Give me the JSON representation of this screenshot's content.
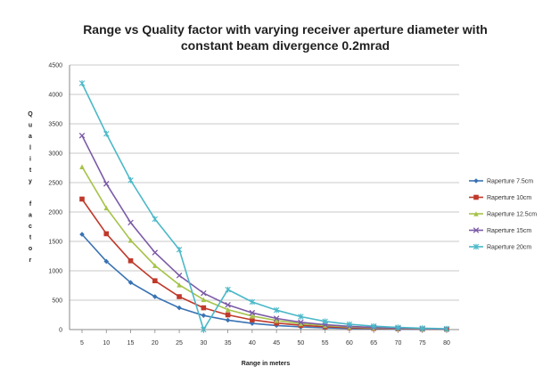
{
  "chart_data": {
    "type": "line",
    "title_lines": [
      "Range vs Quality factor with varying receiver aperture diameter with",
      "constant beam divergence 0.2mrad"
    ],
    "xlabel": "Range in meters",
    "ylabel_letters": [
      "Q",
      "u",
      "a",
      "l",
      "i",
      "t",
      "y",
      "",
      "f",
      "a",
      "c",
      "t",
      "o",
      "r"
    ],
    "ylim": [
      0,
      4500
    ],
    "yticks": [
      0,
      500,
      1000,
      1500,
      2000,
      2500,
      3000,
      3500,
      4000,
      4500
    ],
    "categories": [
      "5",
      "10",
      "15",
      "20",
      "25",
      "30",
      "35",
      "40",
      "45",
      "50",
      "55",
      "60",
      "65",
      "70",
      "75",
      "80"
    ],
    "grid": "horizontal",
    "legend_position": "right",
    "series": [
      {
        "name": "Raperture 7.5cm",
        "color": "#3a73b4",
        "marker": "diamond",
        "values": [
          1620,
          1160,
          800,
          560,
          370,
          240,
          160,
          105,
          70,
          45,
          30,
          20,
          12,
          8,
          5,
          3
        ]
      },
      {
        "name": "Raperture 10cm",
        "color": "#c0392b",
        "marker": "square",
        "values": [
          2220,
          1630,
          1170,
          830,
          560,
          370,
          250,
          165,
          110,
          72,
          48,
          32,
          20,
          13,
          8,
          5
        ]
      },
      {
        "name": "Raperture 12.5cm",
        "color": "#a6c34a",
        "marker": "triangle",
        "values": [
          2770,
          2070,
          1520,
          1090,
          760,
          510,
          340,
          230,
          155,
          100,
          68,
          45,
          29,
          19,
          12,
          8
        ]
      },
      {
        "name": "Raperture 15cm",
        "color": "#7b5aa6",
        "marker": "x",
        "values": [
          3300,
          2480,
          1820,
          1310,
          920,
          620,
          420,
          285,
          190,
          125,
          83,
          55,
          36,
          23,
          15,
          9
        ]
      },
      {
        "name": "Raperture 20cm",
        "color": "#4bb8c8",
        "marker": "star",
        "values": [
          4190,
          3330,
          2540,
          1880,
          1360,
          0,
          680,
          470,
          330,
          220,
          140,
          90,
          58,
          37,
          24,
          15
        ]
      }
    ]
  }
}
